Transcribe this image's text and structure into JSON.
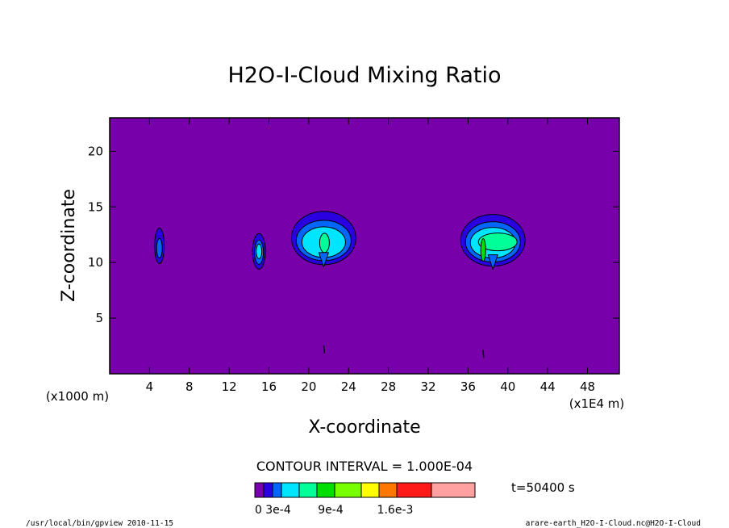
{
  "chart_data": {
    "type": "heatmap",
    "title": "H2O-I-Cloud Mixing Ratio",
    "xlabel": "X-coordinate",
    "ylabel": "Z-coordinate",
    "x_unit_left": "(x1000 m)",
    "x_unit_right": "(x1E4 m)",
    "xlim": [
      0,
      51.2
    ],
    "ylim": [
      0,
      23
    ],
    "x_ticks": [
      4,
      8,
      12,
      16,
      20,
      24,
      28,
      32,
      36,
      40,
      44,
      48
    ],
    "x_tick_labels": [
      "4",
      "8",
      "12",
      "16",
      "20",
      "24",
      "28",
      "32",
      "36",
      "40",
      "44",
      "48"
    ],
    "y_ticks": [
      5,
      10,
      15,
      20
    ],
    "y_tick_labels": [
      "5",
      "10",
      "15",
      "20"
    ],
    "contour_interval_text": "CONTOUR INTERVAL = 1.000E-04",
    "time_text": "t=50400 s",
    "colorbar": {
      "colors": [
        "#7700aa",
        "#2a00e0",
        "#0066ff",
        "#00e5ff",
        "#00ff99",
        "#00dd00",
        "#77ff00",
        "#ffff00",
        "#ff7700",
        "#ff1a1a",
        "#ffa1a1"
      ],
      "tick_labels": [
        "0",
        "3e-4",
        "9e-4",
        "1.6e-3"
      ]
    },
    "levels": [
      0,
      0.0001,
      0.0002,
      0.0003,
      0.0004,
      0.0005
    ],
    "cells": [
      {
        "x": 5.0,
        "z": 11.5,
        "max_level": 2
      },
      {
        "x": 15.0,
        "z": 11.0,
        "max_level": 3
      },
      {
        "x": 21.5,
        "z": 12.2,
        "max_level": 4
      },
      {
        "x": 38.5,
        "z": 12.0,
        "max_level": 5
      }
    ],
    "grid": false
  },
  "footer": {
    "left": "/usr/local/bin/gpview  2010-11-15",
    "right": "arare-earth_H2O-I-Cloud.nc@H2O-I-Cloud"
  }
}
